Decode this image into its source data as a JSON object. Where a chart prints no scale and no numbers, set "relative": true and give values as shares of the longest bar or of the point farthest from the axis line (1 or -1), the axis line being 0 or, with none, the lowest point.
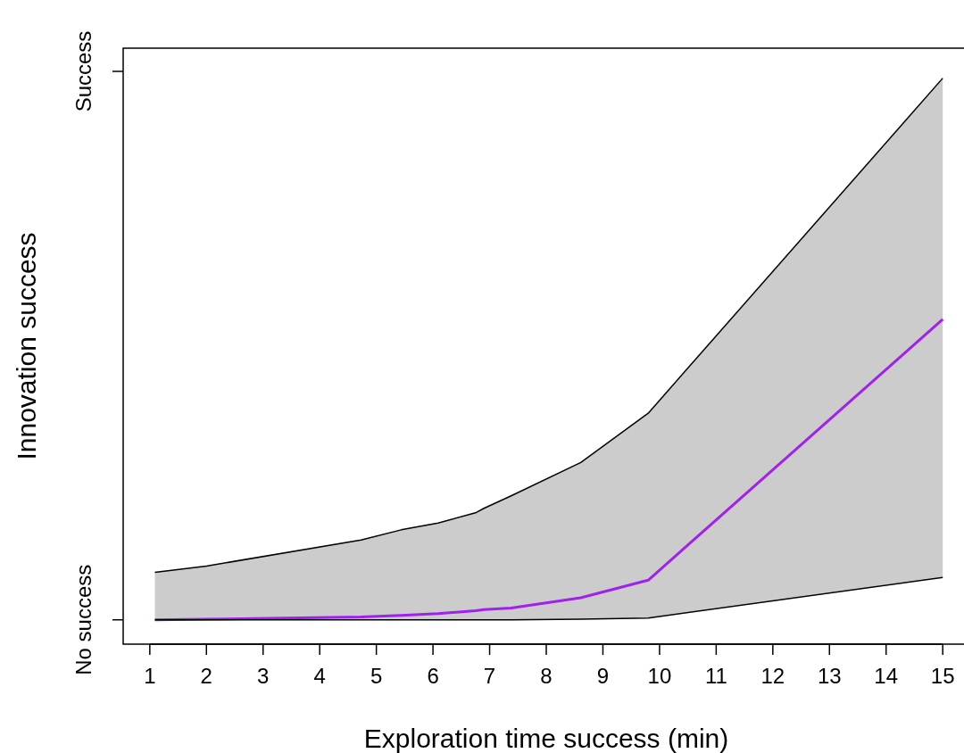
{
  "chart_data": {
    "type": "line",
    "xlabel": "Exploration time success (min)",
    "ylabel": "Innovation success",
    "xlim": [
      0.53,
      15.47
    ],
    "xticks": [
      1,
      2,
      3,
      4,
      5,
      6,
      7,
      8,
      9,
      10,
      11,
      12,
      13,
      14,
      15
    ],
    "relative": true,
    "annotations": [
      "No success",
      "Success"
    ],
    "grid": false,
    "marker": "none",
    "line_style": "solid",
    "series": [
      {
        "color": "#a020f0",
        "x": [
          1.09,
          2,
          4.73,
          5.44,
          6.09,
          6.75,
          6.9,
          7.38,
          8.61,
          9.8,
          15
        ],
        "values": [
          0.043,
          0.044,
          0.048,
          0.051,
          0.054,
          0.059,
          0.061,
          0.064,
          0.082,
          0.113,
          0.574
        ],
        "lower": [
          0.043,
          0.043,
          0.043,
          0.043,
          0.043,
          0.043,
          0.043,
          0.043,
          0.044,
          0.046,
          0.118
        ],
        "upper": [
          0.127,
          0.138,
          0.184,
          0.202,
          0.214,
          0.232,
          0.24,
          0.262,
          0.321,
          0.408,
          1
        ]
      },
      {
        "color": "#000000",
        "x": [
          1.09,
          2,
          4.73,
          5.44,
          6.09,
          6.75,
          6.9,
          7.38,
          8.61,
          9.8,
          15
        ],
        "values": [
          0.127,
          0.138,
          0.184,
          0.202,
          0.214,
          0.232,
          0.24,
          0.262,
          0.321,
          0.408,
          1
        ]
      },
      {
        "color": "#000000",
        "x": [
          1.09,
          2,
          4.73,
          5.44,
          6.09,
          6.75,
          6.9,
          7.38,
          8.61,
          9.8,
          15
        ],
        "values": [
          0.043,
          0.043,
          0.043,
          0.043,
          0.043,
          0.043,
          0.043,
          0.043,
          0.044,
          0.046,
          0.118
        ]
      }
    ]
  }
}
